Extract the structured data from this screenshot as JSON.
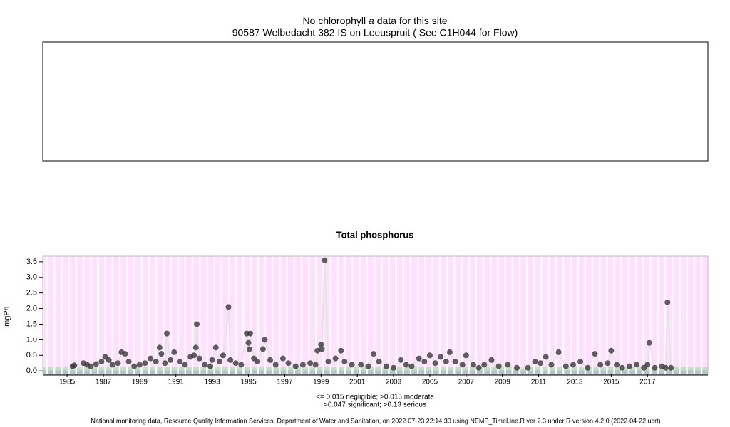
{
  "top_panel": {
    "title_parts": [
      "No chlorophyll",
      "a",
      "data for this site"
    ],
    "subtitle": "90587 Welbedacht 382 IS on Leeuspruit ( See C1H044 for Flow)"
  },
  "chart_data": {
    "type": "scatter",
    "title": "Total phosphorus",
    "y_label": "mgP/L",
    "xlim": [
      1983.66,
      2020.33
    ],
    "ylim": [
      -0.11,
      3.68
    ],
    "xticks": [
      1985,
      1987,
      1989,
      1991,
      1993,
      1995,
      1997,
      1999,
      2001,
      2003,
      2005,
      2007,
      2009,
      2011,
      2013,
      2015,
      2017
    ],
    "yticks": [
      {
        "value": 0,
        "label": "0.0"
      },
      {
        "value": 0.5,
        "label": "0.5"
      },
      {
        "value": 1,
        "label": "1.0"
      },
      {
        "value": 1.5,
        "label": "1.5"
      },
      {
        "value": 2,
        "label": "2.0"
      },
      {
        "value": 2.5,
        "label": "2.5"
      },
      {
        "value": 3,
        "label": "3.0"
      },
      {
        "value": 3.5,
        "label": "3.5"
      }
    ],
    "thresholds": [
      0.015,
      0.047,
      0.13
    ],
    "band_colors": [
      "#b4c4cc",
      "#c4d4c4",
      "#c8dcc8",
      "#ffe0ff"
    ],
    "color": "#3a3a3a",
    "line_color": "#e4e4e4",
    "x": [
      1985.3,
      1985.4,
      1985.9,
      1986.1,
      1986.3,
      1986.6,
      1986.9,
      1987.1,
      1987.3,
      1987.5,
      1987.8,
      1988.0,
      1988.2,
      1988.4,
      1988.7,
      1989.0,
      1989.3,
      1989.6,
      1989.9,
      1990.1,
      1990.2,
      1990.4,
      1990.5,
      1990.7,
      1990.9,
      1991.2,
      1991.5,
      1991.8,
      1992.0,
      1992.1,
      1992.15,
      1992.3,
      1992.6,
      1992.9,
      1993.0,
      1993.2,
      1993.4,
      1993.6,
      1993.9,
      1994.0,
      1994.3,
      1994.6,
      1994.9,
      1995.0,
      1995.05,
      1995.1,
      1995.3,
      1995.5,
      1995.8,
      1995.9,
      1996.2,
      1996.5,
      1996.9,
      1997.2,
      1997.6,
      1998.0,
      1998.4,
      1998.7,
      1998.8,
      1999.0,
      1999.05,
      1999.2,
      1999.4,
      1999.8,
      2000.1,
      2000.3,
      2000.7,
      2001.2,
      2001.6,
      2001.9,
      2002.2,
      2002.6,
      2003.0,
      2003.4,
      2003.7,
      2004.0,
      2004.4,
      2004.7,
      2005.0,
      2005.3,
      2005.6,
      2005.9,
      2006.1,
      2006.4,
      2006.8,
      2007.0,
      2007.4,
      2007.7,
      2008.0,
      2008.4,
      2008.8,
      2009.3,
      2009.8,
      2010.4,
      2010.8,
      2011.1,
      2011.4,
      2011.7,
      2012.1,
      2012.5,
      2012.9,
      2013.3,
      2013.7,
      2014.1,
      2014.4,
      2014.8,
      2015.0,
      2015.3,
      2015.6,
      2016.0,
      2016.4,
      2016.8,
      2017.0,
      2017.1,
      2017.4,
      2017.8,
      2018.0,
      2018.1,
      2018.3
    ],
    "values": [
      0.15,
      0.18,
      0.25,
      0.2,
      0.15,
      0.22,
      0.3,
      0.45,
      0.35,
      0.2,
      0.25,
      0.6,
      0.55,
      0.3,
      0.15,
      0.2,
      0.25,
      0.4,
      0.3,
      0.75,
      0.55,
      0.25,
      1.2,
      0.35,
      0.6,
      0.3,
      0.2,
      0.45,
      0.5,
      0.75,
      1.5,
      0.4,
      0.2,
      0.15,
      0.35,
      0.75,
      0.3,
      0.5,
      2.05,
      0.35,
      0.25,
      0.2,
      1.2,
      0.9,
      0.7,
      1.2,
      0.4,
      0.3,
      0.7,
      1.0,
      0.35,
      0.2,
      0.4,
      0.25,
      0.15,
      0.2,
      0.25,
      0.2,
      0.65,
      0.85,
      0.7,
      3.55,
      0.3,
      0.4,
      0.65,
      0.3,
      0.2,
      0.2,
      0.15,
      0.55,
      0.3,
      0.15,
      0.1,
      0.35,
      0.2,
      0.15,
      0.4,
      0.3,
      0.5,
      0.25,
      0.45,
      0.3,
      0.6,
      0.3,
      0.2,
      0.5,
      0.2,
      0.1,
      0.2,
      0.35,
      0.15,
      0.2,
      0.1,
      0.1,
      0.3,
      0.25,
      0.45,
      0.2,
      0.6,
      0.15,
      0.2,
      0.3,
      0.1,
      0.55,
      0.2,
      0.25,
      0.65,
      0.2,
      0.1,
      0.15,
      0.2,
      0.1,
      0.2,
      0.9,
      0.1,
      0.15,
      0.1,
      2.2,
      0.1
    ],
    "notes": [
      "<= 0.015 negligible; >0.015 moderate",
      ">0.047 significant; >0.13 serious"
    ]
  },
  "footer": "National monitoring data, Resource Quality Information Services, Department of Water and Sanitation, on 2022-07-23 22:14:30 using NEMP_TimeLine.R ver 2.3 under R version 4.2.0 (2022-04-22 ucrt)"
}
